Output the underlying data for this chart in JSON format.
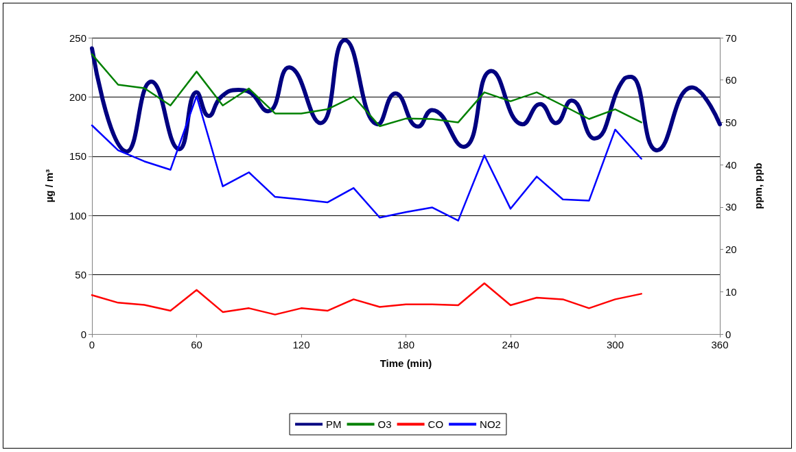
{
  "chart_data": {
    "type": "line",
    "xlabel": "Time (min)",
    "ylabel": "µg / m³",
    "y2label": "ppm, ppb",
    "xlim": [
      0,
      360
    ],
    "xticks": [
      0,
      60,
      120,
      180,
      240,
      300,
      360
    ],
    "ylim": [
      0,
      250
    ],
    "yticks": [
      0,
      50,
      100,
      150,
      200,
      250
    ],
    "y2lim": [
      0,
      70
    ],
    "y2ticks": [
      0,
      10,
      20,
      30,
      40,
      50,
      60,
      70
    ],
    "grid": "y",
    "legend": "bottom",
    "marker": "none",
    "line_style": "solid",
    "series": [
      {
        "name": "PM",
        "color": "#000080",
        "x": [
          0,
          20,
          34,
          50,
          60,
          67,
          74,
          84,
          89,
          101,
          113,
          131,
          145,
          164,
          174,
          187,
          195,
          213,
          229,
          247,
          257,
          266,
          275,
          288,
          305,
          309,
          324,
          344,
          360
        ],
        "values": [
          241,
          154,
          213,
          156,
          204,
          184,
          200,
          206,
          205,
          188,
          225,
          178,
          248,
          177,
          203,
          175,
          189,
          158,
          222,
          177,
          194,
          178,
          197,
          165,
          215,
          217,
          155,
          208,
          177
        ]
      },
      {
        "name": "O3",
        "color": "#008000",
        "axis": "y2",
        "x": [
          0,
          15,
          30,
          45,
          60,
          75,
          90,
          105,
          120,
          135,
          150,
          165,
          180,
          195,
          210,
          225,
          240,
          255,
          270,
          285,
          300,
          315
        ],
        "values": [
          66.1,
          58.9,
          58.1,
          54.0,
          62.0,
          54.0,
          58.0,
          52.1,
          52.1,
          53.1,
          56.1,
          49.1,
          50.9,
          50.8,
          50.0,
          57.1,
          55.0,
          57.1,
          54.0,
          50.8,
          53.1,
          50.0
        ]
      },
      {
        "name": "CO",
        "color": "#ff0000",
        "axis": "y2",
        "x": [
          0,
          15,
          30,
          45,
          60,
          75,
          90,
          105,
          120,
          135,
          150,
          165,
          180,
          195,
          210,
          225,
          240,
          255,
          270,
          285,
          300,
          315
        ],
        "values": [
          9.2,
          7.4,
          6.9,
          5.5,
          10.4,
          5.2,
          6.1,
          4.6,
          6.1,
          5.5,
          8.2,
          6.4,
          7.0,
          7.0,
          6.8,
          12.0,
          6.8,
          8.6,
          8.2,
          6.1,
          8.2,
          9.5
        ]
      },
      {
        "name": "NO2",
        "color": "#0000ff",
        "axis": "y2",
        "x": [
          0,
          15,
          30,
          45,
          60,
          75,
          90,
          105,
          120,
          135,
          150,
          165,
          180,
          195,
          210,
          225,
          240,
          255,
          270,
          285,
          300,
          315
        ],
        "values": [
          49.3,
          43.4,
          40.8,
          38.8,
          56.2,
          34.9,
          38.2,
          32.4,
          31.8,
          31.1,
          34.5,
          27.5,
          28.8,
          29.9,
          26.8,
          42.2,
          29.6,
          37.2,
          31.8,
          31.5,
          48.3,
          41.4
        ]
      }
    ]
  }
}
